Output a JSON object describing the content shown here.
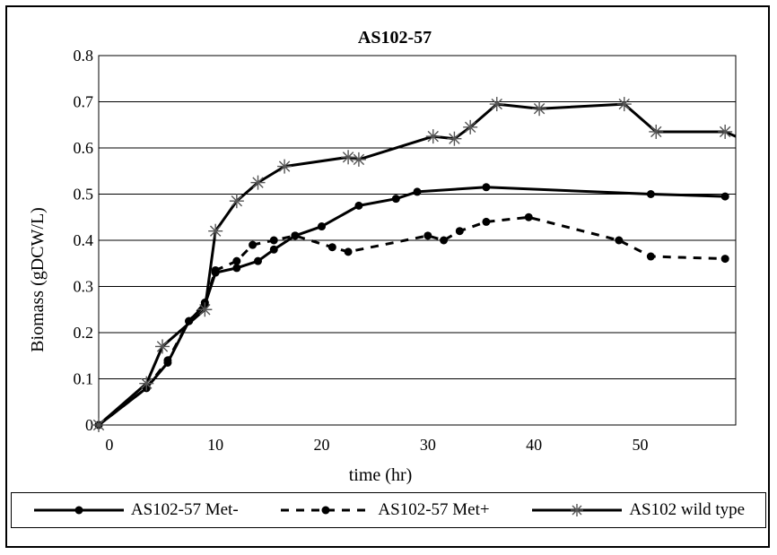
{
  "chart_data": {
    "type": "line",
    "title": "AS102-57",
    "xlabel": "time (hr)",
    "ylabel": "Biomass (gDCW/L)",
    "xlim": [
      -1,
      59
    ],
    "ylim": [
      0,
      0.8
    ],
    "xticks": [
      0,
      10,
      20,
      30,
      40,
      50
    ],
    "yticks": [
      0,
      0.1,
      0.2,
      0.3,
      0.4,
      0.5,
      0.6,
      0.7,
      0.8
    ],
    "ytick_labels": [
      "0",
      "0.1",
      "0.2",
      "0.3",
      "0.4",
      "0.5",
      "0.6",
      "0.7",
      "0.8"
    ],
    "grid": "horizontal",
    "legend_position": "bottom",
    "series": [
      {
        "name": "AS102-57 Met-",
        "color": "#000000",
        "style": "solid",
        "marker": "dot",
        "x": [
          -1,
          3.5,
          5.5,
          7.5,
          9,
          10,
          12,
          14,
          15.5,
          17.5,
          20,
          23.5,
          27,
          29,
          35.5,
          51,
          58
        ],
        "y": [
          0,
          0.08,
          0.135,
          0.225,
          0.26,
          0.33,
          0.34,
          0.355,
          0.38,
          0.41,
          0.43,
          0.475,
          0.49,
          0.505,
          0.515,
          0.5,
          0.495
        ]
      },
      {
        "name": "AS102-57 Met+",
        "color": "#000000",
        "style": "dashed",
        "marker": "dot",
        "x": [
          -1,
          3.5,
          5.5,
          7.5,
          9,
          10,
          12,
          13.5,
          15.5,
          17.5,
          21,
          22.5,
          30,
          31.5,
          33,
          35.5,
          39.5,
          48,
          51,
          58
        ],
        "y": [
          0,
          0.08,
          0.14,
          0.225,
          0.265,
          0.335,
          0.355,
          0.39,
          0.4,
          0.41,
          0.385,
          0.375,
          0.41,
          0.4,
          0.42,
          0.44,
          0.45,
          0.4,
          0.365,
          0.36
        ]
      },
      {
        "name": "AS102 wild type",
        "color": "#000000",
        "style": "solid",
        "marker": "asterisk",
        "x": [
          -1,
          3.5,
          5,
          9,
          10,
          12,
          14,
          16.5,
          22.5,
          23.5,
          30.5,
          32.5,
          34,
          36.5,
          40.5,
          48.5,
          51.5,
          58
        ],
        "y": [
          0,
          0.09,
          0.17,
          0.25,
          0.42,
          0.485,
          0.525,
          0.56,
          0.58,
          0.575,
          0.625,
          0.62,
          0.645,
          0.695,
          0.685,
          0.695,
          0.635,
          0.635
        ]
      }
    ],
    "line_ends": [
      {
        "series": "AS102 wild type",
        "x": 59,
        "y": 0.625
      }
    ]
  }
}
